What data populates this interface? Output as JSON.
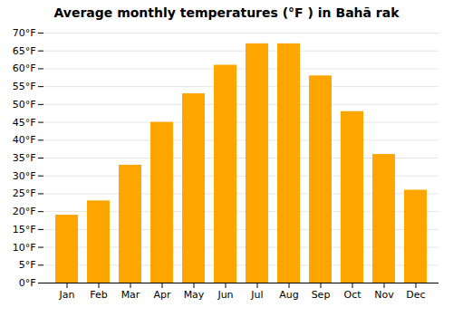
{
  "chart_data": {
    "type": "bar",
    "title": "Average monthly temperatures (°F ) in Bahā rak",
    "categories": [
      "Jan",
      "Feb",
      "Mar",
      "Apr",
      "May",
      "Jun",
      "Jul",
      "Aug",
      "Sep",
      "Oct",
      "Nov",
      "Dec"
    ],
    "values": [
      19,
      23,
      33,
      45,
      53,
      61,
      67,
      67,
      58,
      48,
      36,
      26
    ],
    "color": "#FFA500",
    "ylim": [
      0,
      70
    ],
    "yticks": [
      {
        "value": 0,
        "label": "0°F"
      },
      {
        "value": 5,
        "label": "5°F"
      },
      {
        "value": 10,
        "label": "10°F"
      },
      {
        "value": 15,
        "label": "15°F"
      },
      {
        "value": 20,
        "label": "20°F"
      },
      {
        "value": 25,
        "label": "25°F"
      },
      {
        "value": 30,
        "label": "30°F"
      },
      {
        "value": 35,
        "label": "35°F"
      },
      {
        "value": 40,
        "label": "40°F"
      },
      {
        "value": 45,
        "label": "45°F"
      },
      {
        "value": 50,
        "label": "50°F"
      },
      {
        "value": 55,
        "label": "55°F"
      },
      {
        "value": 60,
        "label": "60°F"
      },
      {
        "value": 65,
        "label": "65°F"
      },
      {
        "value": 70,
        "label": "70°F"
      }
    ],
    "grid": true
  }
}
